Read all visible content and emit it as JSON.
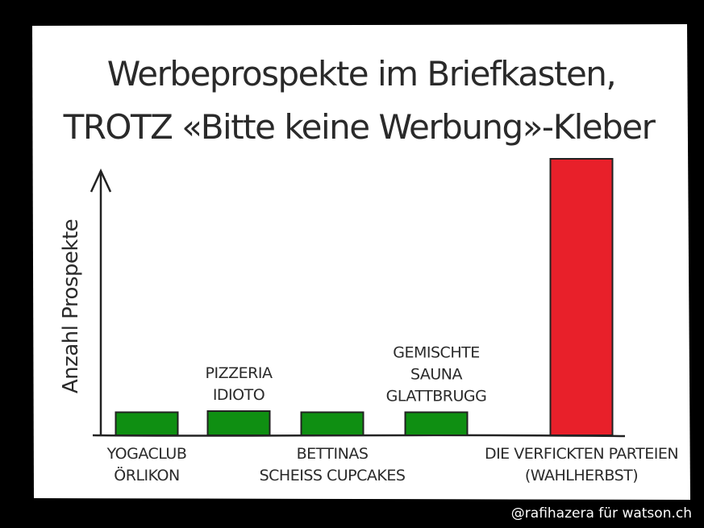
{
  "chart_data": {
    "type": "bar",
    "title": [
      "Werbeprospekte im Briefkasten,",
      "TROTZ «Bitte keine Werbung»-Kleber"
    ],
    "xlabel": "",
    "ylabel": "Anzahl Prospekte",
    "ylim": [
      0,
      13
    ],
    "grid": false,
    "categories": [
      [
        "YOGACLUB",
        "ÖRLIKON"
      ],
      [
        "PIZZERIA",
        "IDIOTO"
      ],
      [
        "BETTINAS",
        "SCHEISS CUPCAKES"
      ],
      [
        "GEMISCHTE",
        "SAUNA",
        "GLATTBRUGG"
      ],
      [
        "DIE VERFICKTEN PARTEIEN",
        "(WAHLHERBST)"
      ]
    ],
    "label_position": [
      "below",
      "above",
      "below",
      "above",
      "below"
    ],
    "values": [
      1,
      1.05,
      1,
      1,
      12
    ],
    "colors": [
      "#0f8f12",
      "#0f8f12",
      "#0f8f12",
      "#0f8f12",
      "#e8202a"
    ]
  },
  "credit": "@rafihazera für watson.ch"
}
